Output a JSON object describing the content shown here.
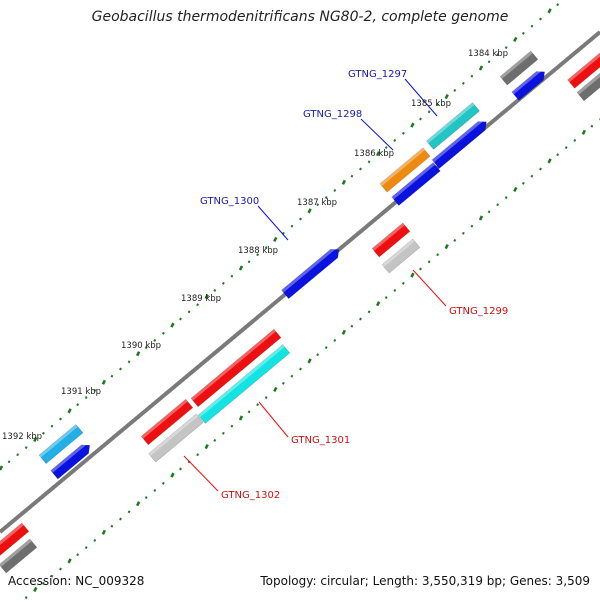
{
  "title": "Geobacillus thermodenitrificans NG80-2, complete genome",
  "footer": {
    "accession": "Accession: NC_009328",
    "summary": "Topology: circular; Length: 3,550,319 bp; Genes: 3,509"
  },
  "ticks": [
    {
      "label": "1384 kbp"
    },
    {
      "label": "1385 kbp"
    },
    {
      "label": "1386 kbp"
    },
    {
      "label": "1387 kbp"
    },
    {
      "label": "1388 kbp"
    },
    {
      "label": "1389 kbp"
    },
    {
      "label": "1390 kbp"
    },
    {
      "label": "1391 kbp"
    },
    {
      "label": "1392 kbp"
    }
  ],
  "gene_labels": [
    {
      "id": "gtng1297",
      "text": "GTNG_1297",
      "color": "#1a1aa6"
    },
    {
      "id": "gtng1298",
      "text": "GTNG_1298",
      "color": "#1a1aa6"
    },
    {
      "id": "gtng1300",
      "text": "GTNG_1300",
      "color": "#1a1aa6"
    },
    {
      "id": "gtng1299",
      "text": "GTNG_1299",
      "color": "#cc1111"
    },
    {
      "id": "gtng1301",
      "text": "GTNG_1301",
      "color": "#cc1111"
    },
    {
      "id": "gtng1302",
      "text": "GTNG_1302",
      "color": "#cc1111"
    }
  ],
  "colors": {
    "backbone": "#7a7a7a",
    "tick_dot": "#1f7a1f",
    "blue": "#0a12e0",
    "red": "#ee1010",
    "cyan": "#12e4e4",
    "teal": "#22c4c4",
    "orange": "#ee8a10",
    "gray": "#6e6e6e",
    "light_gray": "#c4c4c4",
    "sky": "#22aee6"
  }
}
